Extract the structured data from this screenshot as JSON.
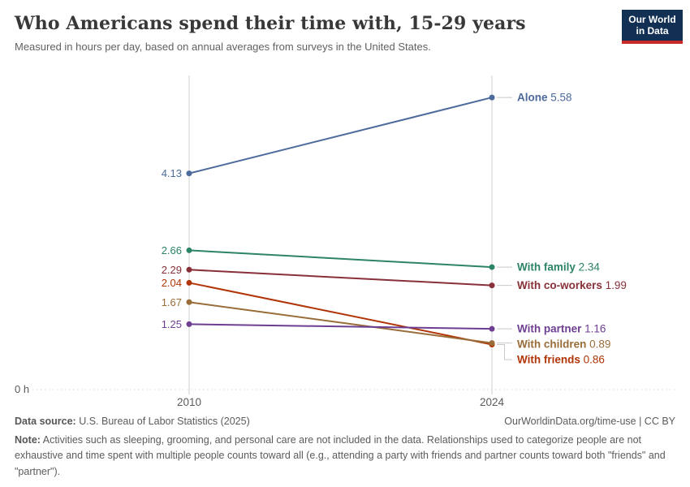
{
  "header": {
    "title": "Who Americans spend their time with, 15-29 years",
    "subtitle": "Measured in hours per day, based on annual averages from surveys in the United States.",
    "logo": {
      "line1": "Our World",
      "line2": "in Data"
    }
  },
  "chart_data": {
    "type": "line",
    "variant": "slope",
    "x": [
      2010,
      2024
    ],
    "x_tick_labels": [
      "2010",
      "2024"
    ],
    "ylim": [
      0,
      6
    ],
    "zero_label": "0 h",
    "grid": "two vertical axis lines plus dotted zero baseline",
    "legend_position": "labels at right line-ends",
    "series": [
      {
        "name": "Alone",
        "values": [
          4.13,
          5.58
        ],
        "color": "#4C6A9C"
      },
      {
        "name": "With family",
        "values": [
          2.66,
          2.34
        ],
        "color": "#2C8465"
      },
      {
        "name": "With co-workers",
        "values": [
          2.29,
          1.99
        ],
        "color": "#883039"
      },
      {
        "name": "With friends",
        "values": [
          2.04,
          0.86
        ],
        "color": "#B13507"
      },
      {
        "name": "With children",
        "values": [
          1.67,
          0.89
        ],
        "color": "#996D39"
      },
      {
        "name": "With partner",
        "values": [
          1.25,
          1.16
        ],
        "color": "#6D3E91"
      }
    ],
    "colors": {
      "axis_line": "#cfcfcf",
      "zero_line": "#d9d9d9",
      "connector": "#c8c8c8",
      "tick_text": "#5b5b5b"
    }
  },
  "footer": {
    "source_label": "Data source:",
    "source_text": " U.S. Bureau of Labor Statistics (2025)",
    "credit": "OurWorldinData.org/time-use | CC BY",
    "note_label": "Note:",
    "note_text": " Activities such as sleeping, grooming, and personal care are not included in the data. Relationships used to categorize people are not exhaustive and time spent with multiple people counts toward all (e.g., attending a party with friends and partner counts toward both \"friends\" and \"partner\")."
  }
}
